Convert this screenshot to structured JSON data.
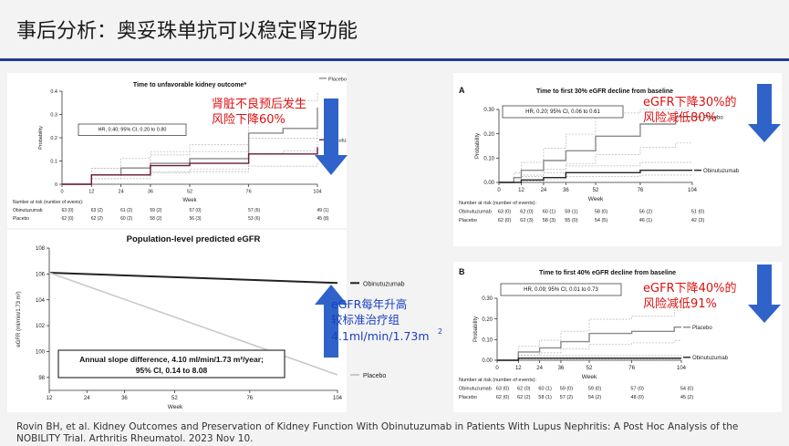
{
  "slide": {
    "title": "事后分析：奥妥珠单抗可以稳定肾功能",
    "citation": "Rovin BH, et al. Kidney Outcomes and Preservation of Kidney Function With Obinutuzumab in Patients With Lupus Nephritis: A Post Hoc Analysis of the NOBILITY Trial. Arthritis Rheumatol. 2023 Nov 10."
  },
  "colors": {
    "accent_blue": "#1f3a93",
    "arrow_blue": "#2f63c9",
    "red_note": "#e01010",
    "placebo_line": "#8a8a8a",
    "obinutuzumab_line": "#6a1a3a"
  },
  "notes": {
    "p1": [
      "肾脏不良预后发生",
      "风险下降60%"
    ],
    "p2": [
      "eGFR下降30%的",
      "风险减低80%"
    ],
    "p3": [
      "eGFR每年升高",
      "较标准治疗组",
      "4.1ml/min/1.73m",
      "2"
    ],
    "p4": [
      "eGFR下降40%的",
      "风险减低91%"
    ]
  },
  "chart_data": [
    {
      "id": "p1",
      "type": "line",
      "title": "Time to unfavorable kidney outcome*",
      "xlabel": "Week",
      "ylabel": "Probability",
      "xlim": [
        0,
        104
      ],
      "ylim": [
        0,
        0.4
      ],
      "xticks": [
        0,
        12,
        24,
        36,
        52,
        76,
        104
      ],
      "yticks": [
        0,
        0.1,
        0.2,
        0.3,
        0.4
      ],
      "yticklabels": [
        "0",
        "0.1",
        "0.2",
        "0.3",
        "0.4"
      ],
      "annotation": "HR, 0.40; 95% CI, 0.20 to 0.80",
      "series": [
        {
          "name": "Placebo",
          "steps": [
            [
              0,
              0
            ],
            [
              12,
              0.04
            ],
            [
              24,
              0.07
            ],
            [
              36,
              0.09
            ],
            [
              52,
              0.11
            ],
            [
              76,
              0.22
            ],
            [
              90,
              0.24
            ],
            [
              104,
              0.33
            ]
          ]
        },
        {
          "name": "Obinutuzumab",
          "steps": [
            [
              0,
              0
            ],
            [
              12,
              0.04
            ],
            [
              36,
              0.08
            ],
            [
              52,
              0.09
            ],
            [
              76,
              0.13
            ],
            [
              104,
              0.16
            ]
          ]
        }
      ],
      "risk_table": {
        "header": "Number at risk (number of events):",
        "rows": [
          {
            "label": "Obinutuzumab",
            "values": [
              "63 (0)",
              "63 (2)",
              "61 (2)",
              "59 (2)",
              "57 (0)",
              "57 (6)",
              "49 (1)"
            ]
          },
          {
            "label": "Placebo",
            "values": [
              "62 (0)",
              "62 (2)",
              "60 (2)",
              "58 (2)",
              "56 (3)",
              "53 (6)",
              "45 (8)"
            ]
          }
        ]
      }
    },
    {
      "id": "p2",
      "type": "line",
      "panel_label": "A",
      "title": "Time to first 30% eGFR decline from baseline",
      "xlabel": "Week",
      "ylabel": "Probability",
      "xlim": [
        0,
        104
      ],
      "ylim": [
        0,
        0.3
      ],
      "xticks": [
        0,
        12,
        24,
        36,
        52,
        76,
        104
      ],
      "yticks": [
        0,
        0.1,
        0.2,
        0.3
      ],
      "yticklabels": [
        "0.00",
        "0.10",
        "0.20",
        "0.30"
      ],
      "annotation": "HR, 0.20; 95% CI, 0.06 to 0.61",
      "series": [
        {
          "name": "Placebo",
          "steps": [
            [
              0,
              0
            ],
            [
              8,
              0.02
            ],
            [
              12,
              0.05
            ],
            [
              24,
              0.09
            ],
            [
              36,
              0.13
            ],
            [
              52,
              0.19
            ],
            [
              76,
              0.24
            ],
            [
              95,
              0.27
            ],
            [
              104,
              0.27
            ]
          ]
        },
        {
          "name": "Obinutuzumab",
          "steps": [
            [
              0,
              0
            ],
            [
              12,
              0.01
            ],
            [
              24,
              0.02
            ],
            [
              36,
              0.04
            ],
            [
              52,
              0.04
            ],
            [
              76,
              0.05
            ],
            [
              104,
              0.05
            ]
          ]
        }
      ],
      "risk_table": {
        "header": "Number at risk (number of events):",
        "rows": [
          {
            "label": "Obinutuzumab",
            "values": [
              "63 (0)",
              "62 (0)",
              "60 (1)",
              "59 (1)",
              "58 (0)",
              "56 (2)",
              "51 (0)"
            ]
          },
          {
            "label": "Placebo",
            "values": [
              "62 (0)",
              "62 (3)",
              "58 (3)",
              "55 (0)",
              "54 (5)",
              "46 (1)",
              "42 (3)"
            ]
          }
        ]
      }
    },
    {
      "id": "p3",
      "type": "line",
      "title": "Population-level predicted eGFR",
      "xlabel": "Week",
      "ylabel": "eGFR  (ml/min/1.73 m²)",
      "xlim": [
        12,
        104
      ],
      "ylim": [
        97,
        108
      ],
      "xticks": [
        12,
        24,
        36,
        52,
        76,
        104
      ],
      "yticks": [
        98,
        100,
        102,
        104,
        106,
        108
      ],
      "annotation": [
        "Annual slope difference, 4.10 ml/min/1.73 m²/year;",
        "95% CI, 0.14 to 8.08"
      ],
      "series": [
        {
          "name": "Obinutuzumab",
          "x": [
            12,
            104
          ],
          "y": [
            106.1,
            105.3
          ]
        },
        {
          "name": "Placebo",
          "x": [
            12,
            104
          ],
          "y": [
            106.1,
            98.2
          ]
        }
      ]
    },
    {
      "id": "p4",
      "type": "line",
      "panel_label": "B",
      "title": "Time to first 40% eGFR decline from baseline",
      "xlabel": "Week",
      "ylabel": "Probability",
      "xlim": [
        0,
        104
      ],
      "ylim": [
        0,
        0.3
      ],
      "xticks": [
        0,
        12,
        24,
        36,
        52,
        76,
        104
      ],
      "yticks": [
        0,
        0.1,
        0.2,
        0.3
      ],
      "yticklabels": [
        "0.00",
        "0.10",
        "0.20",
        "0.30"
      ],
      "annotation": "HR, 0.09; 95% CI, 0.01 to 0.73",
      "series": [
        {
          "name": "Placebo",
          "steps": [
            [
              0,
              0
            ],
            [
              12,
              0.04
            ],
            [
              24,
              0.06
            ],
            [
              36,
              0.09
            ],
            [
              52,
              0.13
            ],
            [
              76,
              0.14
            ],
            [
              100,
              0.16
            ],
            [
              104,
              0.16
            ]
          ]
        },
        {
          "name": "Obinutuzumab",
          "steps": [
            [
              0,
              0
            ],
            [
              12,
              0.01
            ],
            [
              104,
              0.01
            ]
          ]
        }
      ],
      "risk_table": {
        "header": "Number at risk (number of events):",
        "rows": [
          {
            "label": "Obinutuzumab",
            "values": [
              "63 (0)",
              "62 (0)",
              "60 (1)",
              "59 (0)",
              "59 (0)",
              "57 (0)",
              "54 (0)"
            ]
          },
          {
            "label": "Placebo",
            "values": [
              "62 (0)",
              "62 (2)",
              "58 (1)",
              "57 (2)",
              "54 (2)",
              "48 (0)",
              "45 (2)"
            ]
          }
        ]
      }
    }
  ]
}
